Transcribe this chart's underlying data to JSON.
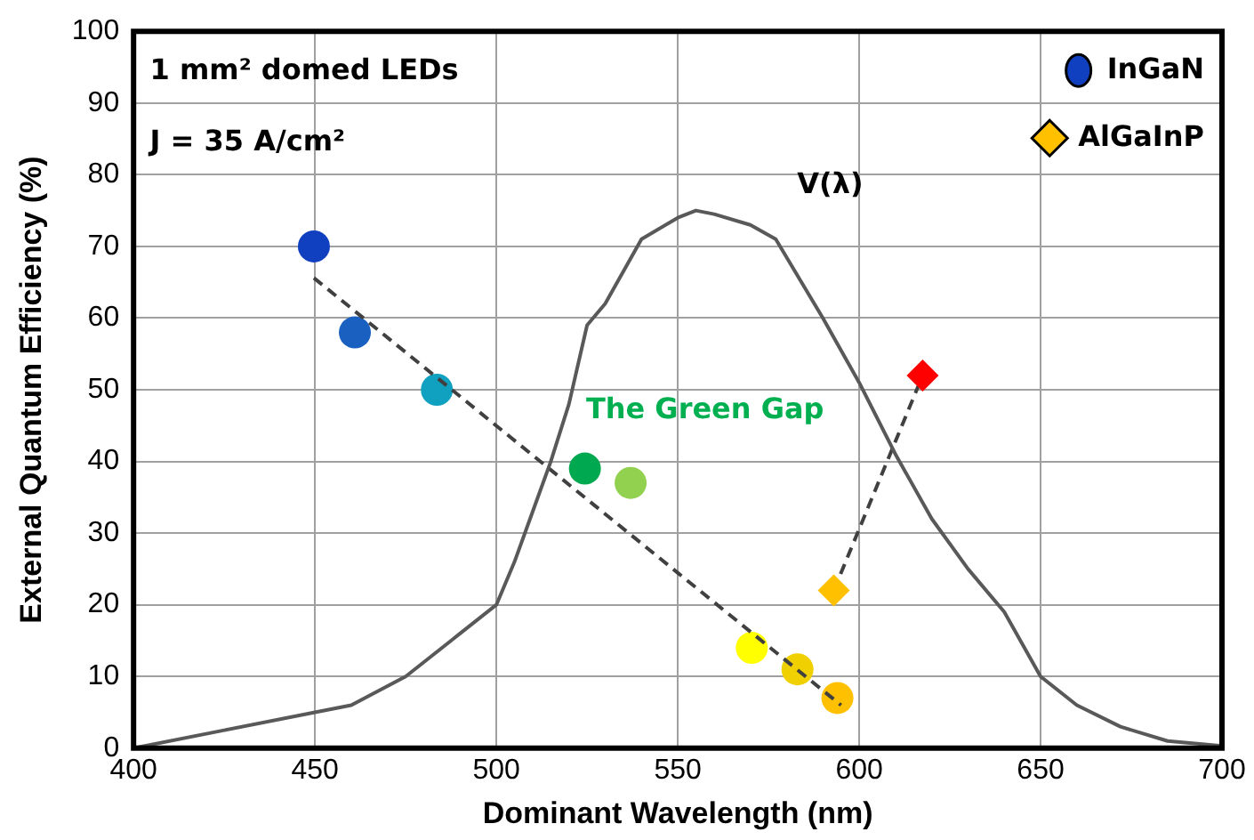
{
  "chart_data": {
    "type": "scatter",
    "xlabel": "Dominant Wavelength (nm)",
    "ylabel": "External Quantum Efficiency (%)",
    "xlim": [
      400,
      700
    ],
    "xticks": [
      400,
      450,
      500,
      550,
      600,
      650,
      700
    ],
    "ylim": [
      0,
      100
    ],
    "yticks": [
      0,
      10,
      20,
      30,
      40,
      50,
      60,
      70,
      80,
      90,
      100
    ],
    "grid": true,
    "legend": "top right",
    "annotations": [
      "1 mm² domed LEDs",
      "J = 35 A/cm²",
      "V(λ)",
      "The Green Gap"
    ],
    "series": [
      {
        "type": "line",
        "color": "#595959",
        "marker": "none",
        "line_style": "solid",
        "x": [
          400,
          425,
          450,
          460,
          475,
          490,
          500,
          505,
          510,
          515,
          520,
          525,
          530,
          540,
          550,
          555,
          560,
          570,
          577,
          590,
          600,
          610,
          620,
          630,
          640,
          650,
          660,
          672,
          685,
          700
        ],
        "values": [
          0,
          2.5,
          5,
          6,
          10,
          16,
          20,
          26,
          33,
          40,
          48,
          59,
          62,
          71,
          74,
          75,
          74.5,
          73,
          71,
          60,
          51,
          41,
          32,
          25,
          19,
          10,
          6,
          3,
          1,
          0.3
        ]
      },
      {
        "type": "line",
        "color": "#404040",
        "marker": "none",
        "line_style": "dashed",
        "x": [
          449.7,
          595
        ],
        "values": [
          65.6,
          6
        ]
      },
      {
        "name": "InGaN",
        "marker": "circle",
        "x": [
          449.7,
          461,
          483.6,
          524.4,
          537,
          570.4,
          583,
          594
        ],
        "values": [
          70,
          58,
          50,
          39,
          37,
          14,
          11,
          7
        ],
        "colors": [
          "#1040c0",
          "#1a60c0",
          "#10a0c0",
          "#00a850",
          "#92d050",
          "#ffff00",
          "#f0d000",
          "#ffc000"
        ]
      },
      {
        "type": "line",
        "name": "AlGaInP",
        "marker": "diamond",
        "line_style": "dashed",
        "color": "#404040",
        "x": [
          593,
          617.5
        ],
        "values": [
          22,
          52
        ],
        "colors": [
          "#ffc000",
          "#ff0000"
        ]
      }
    ]
  }
}
